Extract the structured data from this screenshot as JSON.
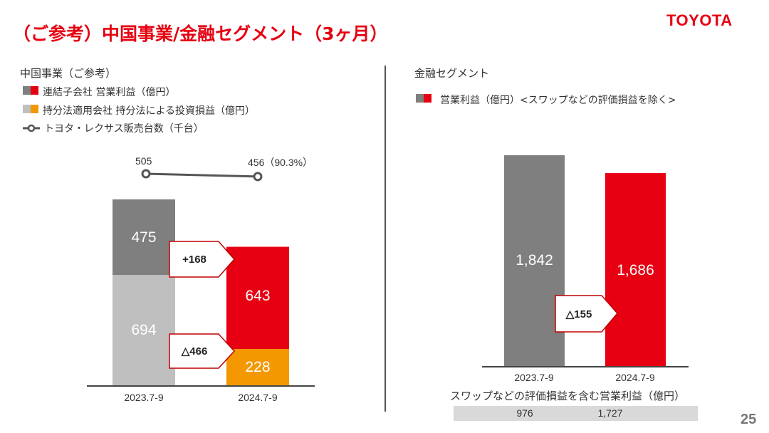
{
  "title": "（ご参考）中国事業/金融セグメント（3ヶ月）",
  "logo": "TOYOTA",
  "page_number": "25",
  "colors": {
    "red": "#e60012",
    "dark_gray": "#7f7f7f",
    "light_gray": "#bfbfbf",
    "orange": "#f39800"
  },
  "chart_data": [
    {
      "type": "bar",
      "title": "中国事業（ご参考）",
      "legend": [
        {
          "label": "連結子会社 営業利益（億円）",
          "colors": [
            "#7f7f7f",
            "#e60012"
          ]
        },
        {
          "label": "持分法適用会社 持分法による投資損益（億円）",
          "colors": [
            "#bfbfbf",
            "#f39800"
          ]
        },
        {
          "label": "トヨタ・レクサス販売台数（千台）",
          "marker": "line-circle"
        }
      ],
      "categories": [
        "2023.7-9",
        "2024.7-9"
      ],
      "stacked": true,
      "series": [
        {
          "name": "持分法適用会社 持分法による投資損益（億円）",
          "values": [
            694,
            228
          ],
          "colors": [
            "#bfbfbf",
            "#f39800"
          ]
        },
        {
          "name": "連結子会社 営業利益（億円）",
          "values": [
            475,
            643
          ],
          "colors": [
            "#7f7f7f",
            "#e60012"
          ]
        }
      ],
      "line_series": {
        "name": "トヨタ・レクサス販売台数（千台）",
        "values": [
          505,
          456
        ],
        "labels": [
          "505",
          "456（90.3%）"
        ]
      },
      "value_labels": {
        "equity": [
          "694",
          "228"
        ],
        "consolidated": [
          "475",
          "643"
        ]
      },
      "annotations": [
        {
          "text": "+168"
        },
        {
          "text": "△466"
        }
      ]
    },
    {
      "type": "bar",
      "title": "金融セグメント",
      "legend": [
        {
          "label": "営業利益（億円）<スワップなどの評価損益を除く>",
          "colors": [
            "#7f7f7f",
            "#e60012"
          ]
        }
      ],
      "categories": [
        "2023.7-9",
        "2024.7-9"
      ],
      "series": [
        {
          "name": "営業利益（億円）<スワップなどの評価損益を除く>",
          "values": [
            1842,
            1686
          ],
          "colors": [
            "#7f7f7f",
            "#e60012"
          ]
        }
      ],
      "value_labels": [
        "1,842",
        "1,686"
      ],
      "annotations": [
        {
          "text": "△155"
        }
      ],
      "table": {
        "label": "スワップなどの評価損益を含む営業利益（億円）",
        "values": [
          "976",
          "1,727"
        ]
      }
    }
  ]
}
